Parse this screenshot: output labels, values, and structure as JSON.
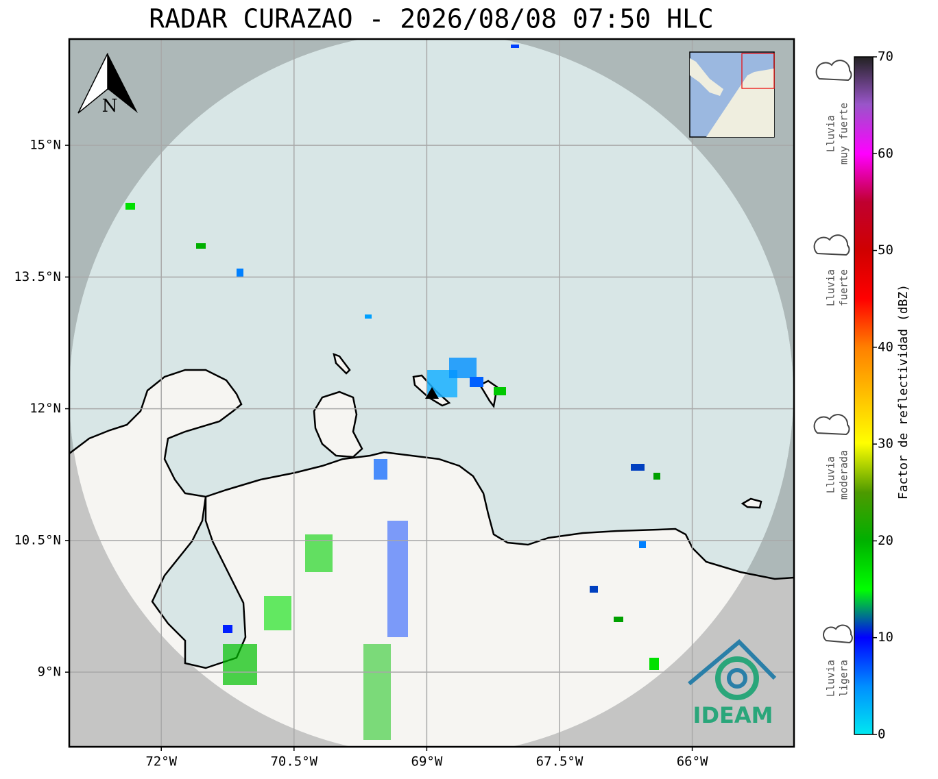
{
  "title": "RADAR CURAZAO - 2026/08/08 07:50 HLC",
  "map": {
    "xlim": [
      -73.04,
      -64.85
    ],
    "ylim": [
      8.15,
      16.21
    ],
    "xticks": [
      {
        "value": -72,
        "label": "72°W"
      },
      {
        "value": -70.5,
        "label": "70.5°W"
      },
      {
        "value": -69,
        "label": "69°W"
      },
      {
        "value": -67.5,
        "label": "67.5°W"
      },
      {
        "value": -66,
        "label": "66°W"
      }
    ],
    "yticks": [
      {
        "value": 9,
        "label": "9°N"
      },
      {
        "value": 10.5,
        "label": "10.5°N"
      },
      {
        "value": 12,
        "label": "12°N"
      },
      {
        "value": 13.5,
        "label": "13.5°N"
      },
      {
        "value": 15,
        "label": "15°N"
      }
    ],
    "grid": true,
    "north_label": "N"
  },
  "colorbar": {
    "label": "Factor de reflectividad (dBZ)",
    "lim": [
      0,
      70
    ],
    "ticks": [
      0,
      10,
      20,
      30,
      40,
      50,
      60,
      70
    ]
  },
  "rain_levels": [
    {
      "lines": [
        "Lluvia",
        "muy fuerte"
      ]
    },
    {
      "lines": [
        "Lluvia",
        "fuerte"
      ]
    },
    {
      "lines": [
        "Lluvia",
        "moderada"
      ]
    },
    {
      "lines": [
        "Lluvia",
        "ligera"
      ]
    }
  ],
  "logo": "IDEAM"
}
